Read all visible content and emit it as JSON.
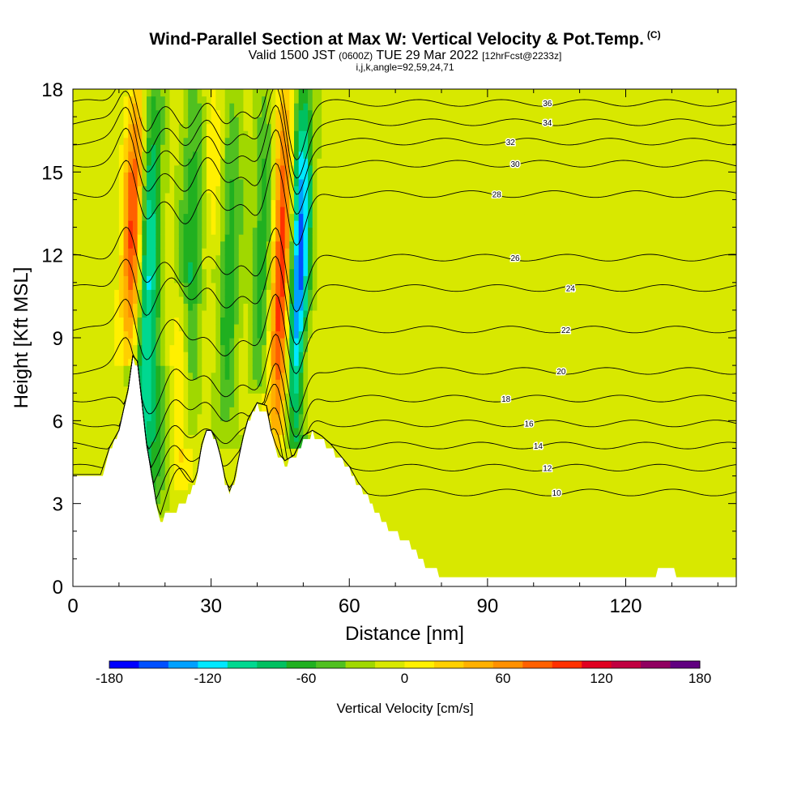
{
  "header": {
    "title": "Wind-Parallel Section at Max W: Vertical Velocity & Pot.Temp.",
    "copyright": "(C)",
    "valid_prefix": "Valid 1500 JST",
    "valid_utc": "(0600Z)",
    "valid_date": "TUE 29 Mar 2022",
    "forecast": "[12hrFcst@2233z]",
    "indices": "i,j,k,angle=92,59,24,71"
  },
  "chart_data": {
    "type": "heatmap",
    "xlabel": "Distance [nm]",
    "ylabel": "Height [Kft MSL]",
    "xlim": [
      0,
      144
    ],
    "ylim": [
      0,
      18
    ],
    "xticks": [
      0,
      30,
      60,
      90,
      120
    ],
    "yticks": [
      0,
      3,
      6,
      9,
      12,
      15,
      18
    ],
    "colorbar": {
      "label": "Vertical Velocity [cm/s]",
      "min": -180,
      "max": 180,
      "step": 20,
      "tick_labels": [
        -180,
        -120,
        -60,
        0,
        60,
        120,
        180
      ],
      "colors": [
        "#0000ff",
        "#0050ff",
        "#00a0ff",
        "#00e8ff",
        "#00d890",
        "#00c060",
        "#20b020",
        "#50c020",
        "#a0d800",
        "#d8e800",
        "#fff000",
        "#ffd000",
        "#ffb000",
        "#ff9000",
        "#ff6000",
        "#ff3000",
        "#e00020",
        "#c00040",
        "#900060",
        "#600080"
      ]
    },
    "terrain_kft": [
      [
        0,
        3.9
      ],
      [
        6,
        3.9
      ],
      [
        8,
        4.9
      ],
      [
        10,
        5.5
      ],
      [
        12,
        7.0
      ],
      [
        13,
        8.2
      ],
      [
        14,
        8.0
      ],
      [
        15,
        6.5
      ],
      [
        16,
        5.0
      ],
      [
        17,
        4.0
      ],
      [
        18,
        3.0
      ],
      [
        19,
        2.3
      ],
      [
        20,
        2.5
      ],
      [
        22,
        2.7
      ],
      [
        24,
        3.0
      ],
      [
        26,
        3.5
      ],
      [
        27,
        4.0
      ],
      [
        28,
        5.0
      ],
      [
        29,
        5.5
      ],
      [
        30,
        5.5
      ],
      [
        31,
        5.2
      ],
      [
        32,
        4.6
      ],
      [
        33,
        3.8
      ],
      [
        34,
        3.3
      ],
      [
        35,
        3.7
      ],
      [
        36,
        4.5
      ],
      [
        37,
        5.3
      ],
      [
        38,
        5.9
      ],
      [
        40,
        6.5
      ],
      [
        42,
        6.4
      ],
      [
        43,
        5.5
      ],
      [
        44,
        5.0
      ],
      [
        45,
        4.6
      ],
      [
        46,
        4.4
      ],
      [
        47,
        4.5
      ],
      [
        48,
        4.6
      ],
      [
        50,
        5.3
      ],
      [
        52,
        5.5
      ],
      [
        54,
        5.3
      ],
      [
        56,
        5.0
      ],
      [
        58,
        4.6
      ],
      [
        60,
        4.2
      ],
      [
        62,
        3.6
      ],
      [
        64,
        3.2
      ],
      [
        66,
        2.6
      ],
      [
        68,
        2.2
      ],
      [
        70,
        1.9
      ],
      [
        72,
        1.7
      ],
      [
        74,
        1.3
      ],
      [
        76,
        0.9
      ],
      [
        78,
        0.6
      ],
      [
        80,
        0.4
      ],
      [
        82,
        0.3
      ],
      [
        90,
        0.3
      ],
      [
        110,
        0.3
      ],
      [
        126,
        0.3
      ],
      [
        127,
        0.5
      ],
      [
        130,
        0.6
      ],
      [
        131,
        0.4
      ],
      [
        135,
        0.4
      ],
      [
        138,
        0.3
      ],
      [
        144,
        0.3
      ]
    ],
    "updraft_bands": [
      {
        "x": 12.5,
        "base": 8.0,
        "top": 18,
        "w_peak": 130
      },
      {
        "x": 23,
        "base": 3.5,
        "top": 11,
        "w_peak": 60
      },
      {
        "x": 44.5,
        "base": 5.0,
        "top": 18,
        "w_peak": 140
      },
      {
        "x": 50,
        "base": 5.5,
        "top": 10,
        "w_peak": 40
      },
      {
        "x": 30,
        "base": 11.5,
        "top": 18,
        "w_peak": 30
      }
    ],
    "downdraft_bands": [
      {
        "x": 15,
        "base": 3.0,
        "top": 18,
        "w_peak": -120
      },
      {
        "x": 18.5,
        "base": 2.5,
        "top": 8,
        "w_peak": -50
      },
      {
        "x": 24.5,
        "base": 5,
        "top": 18,
        "w_peak": -70
      },
      {
        "x": 33,
        "base": 5,
        "top": 18,
        "w_peak": -60
      },
      {
        "x": 40.5,
        "base": 7,
        "top": 18,
        "w_peak": -65
      },
      {
        "x": 48,
        "base": 5.0,
        "top": 18,
        "w_peak": -170
      }
    ],
    "theta_contours": [
      {
        "label": "10",
        "y": 3.4
      },
      {
        "label": "12",
        "y": 4.3
      },
      {
        "label": "14",
        "y": 5.1
      },
      {
        "label": "16",
        "y": 5.9
      },
      {
        "label": "18",
        "y": 6.8
      },
      {
        "label": "20",
        "y": 7.8
      },
      {
        "label": "22",
        "y": 9.3
      },
      {
        "label": "24",
        "y": 10.8
      },
      {
        "label": "26",
        "y": 11.9
      },
      {
        "label": "28",
        "y": 14.2
      },
      {
        "label": "30",
        "y": 15.3
      },
      {
        "label": "32",
        "y": 16.1
      },
      {
        "label": "34",
        "y": 16.8
      },
      {
        "label": "36",
        "y": 17.5
      }
    ]
  }
}
